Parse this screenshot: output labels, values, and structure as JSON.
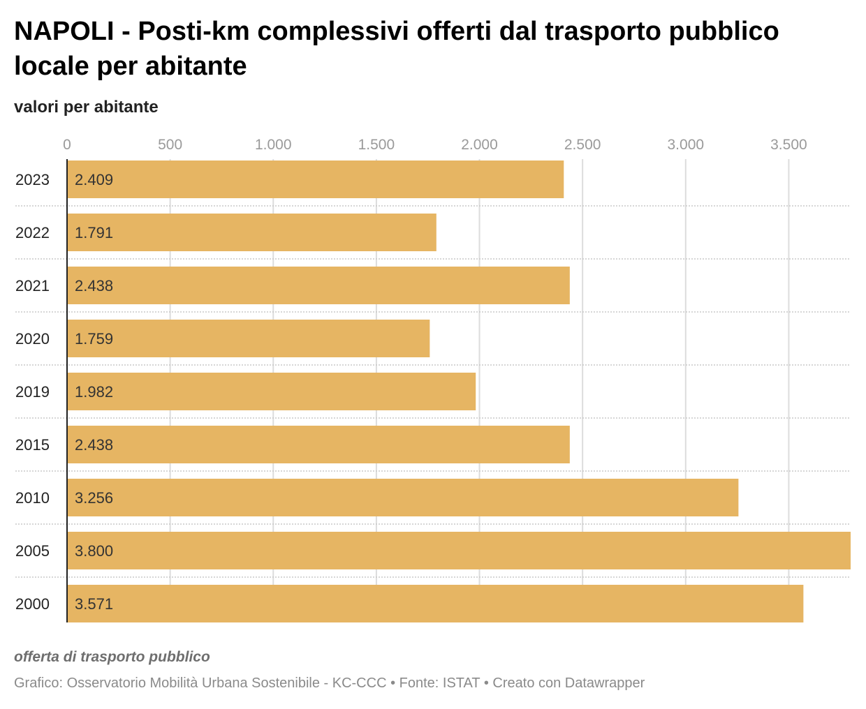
{
  "chart_data": {
    "type": "bar",
    "orientation": "horizontal",
    "title": "NAPOLI - Posti-km complessivi offerti dal trasporto pubblico locale per abitante",
    "subtitle": "valori per abitante",
    "categories": [
      "2023",
      "2022",
      "2021",
      "2020",
      "2019",
      "2015",
      "2010",
      "2005",
      "2000"
    ],
    "values": [
      2409,
      1791,
      2438,
      1759,
      1982,
      2438,
      3256,
      3800,
      3571
    ],
    "value_labels": [
      "2.409",
      "1.791",
      "2.438",
      "1.759",
      "1.982",
      "2.438",
      "3.256",
      "3.800",
      "3.571"
    ],
    "xlim": [
      0,
      3800
    ],
    "x_ticks": [
      0,
      500,
      1000,
      1500,
      2000,
      2500,
      3000,
      3500
    ],
    "x_tick_labels": [
      "0",
      "500",
      "1.000",
      "1.500",
      "2.000",
      "2.500",
      "3.000",
      "3.500"
    ],
    "grid": true,
    "bar_color": "#e6b563",
    "footnote": "offerta di trasporto pubblico"
  },
  "credits": {
    "grafico": "Grafico: Osservatorio Mobilità Urbana Sostenibile - KC-CCC",
    "fonte": "Fonte: ISTAT",
    "creato": "Creato con Datawrapper",
    "separator": "•"
  }
}
